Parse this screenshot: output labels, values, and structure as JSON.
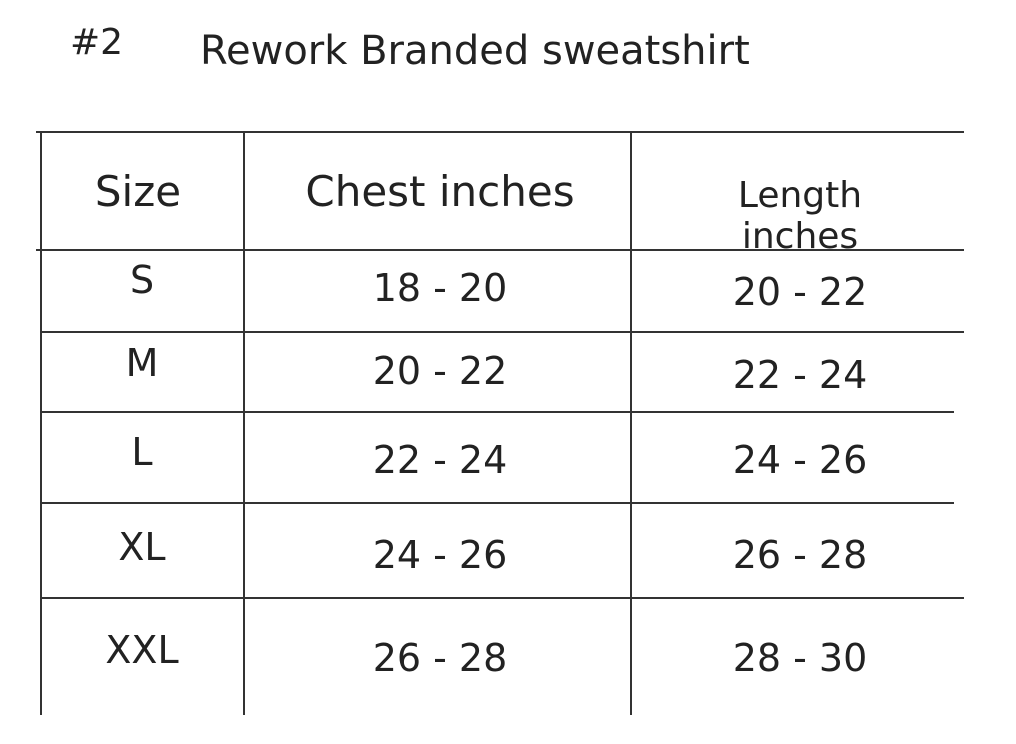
{
  "number": "#2",
  "title": "Rework Branded sweatshirt",
  "table": {
    "headers": [
      "Size",
      "Chest inches",
      "Length inches"
    ],
    "rows": [
      [
        "S",
        "18 - 20",
        "20 - 22"
      ],
      [
        "M",
        "20 - 22",
        "22 - 24"
      ],
      [
        "L",
        "22 - 24",
        "24 - 26"
      ],
      [
        "XL",
        "24 - 26",
        "26 - 28"
      ],
      [
        "XXL",
        "26 - 28",
        "28 - 30"
      ]
    ]
  }
}
